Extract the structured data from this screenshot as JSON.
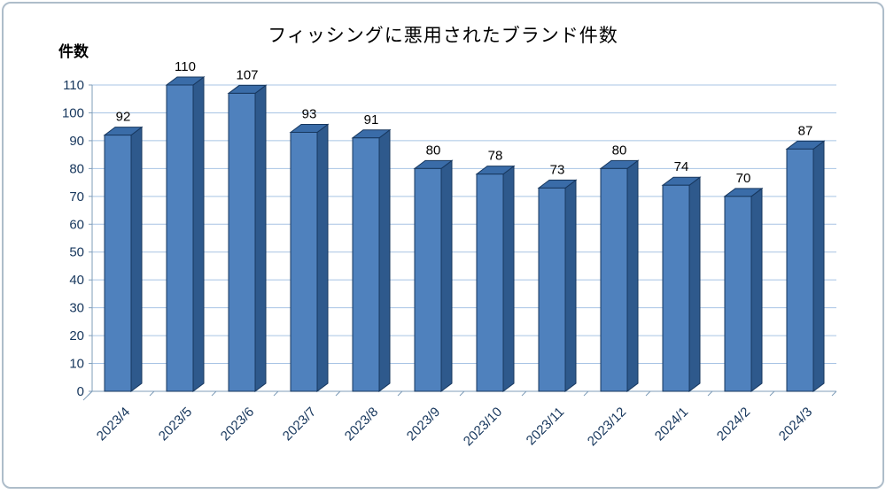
{
  "header": {
    "title": "フィッシングに悪用されたブランド件数",
    "y_axis_label": "件数"
  },
  "chart_data": {
    "type": "bar",
    "title": "フィッシングに悪用されたブランド件数",
    "xlabel": "",
    "ylabel": "件数",
    "categories": [
      "2023/4",
      "2023/5",
      "2023/6",
      "2023/7",
      "2023/8",
      "2023/9",
      "2023/10",
      "2023/11",
      "2023/12",
      "2024/1",
      "2024/2",
      "2024/3"
    ],
    "values": [
      92,
      110,
      107,
      93,
      91,
      80,
      78,
      73,
      80,
      74,
      70,
      87
    ],
    "ylim": [
      0,
      110
    ],
    "yticks": [
      0,
      10,
      20,
      30,
      40,
      50,
      60,
      70,
      80,
      90,
      100,
      110
    ],
    "grid": true,
    "legend": false,
    "style": "3d-bar",
    "colors": {
      "bar_front": "#4f81bd",
      "bar_side": "#2e598c",
      "bar_top": "#3a6ca8",
      "bar_outline": "#17375e",
      "gridline": "#a8c4e4",
      "axis": "#7f9db9",
      "tick_label": "#16365c",
      "value_label": "#000000",
      "frame_border": "#aebdca"
    }
  }
}
